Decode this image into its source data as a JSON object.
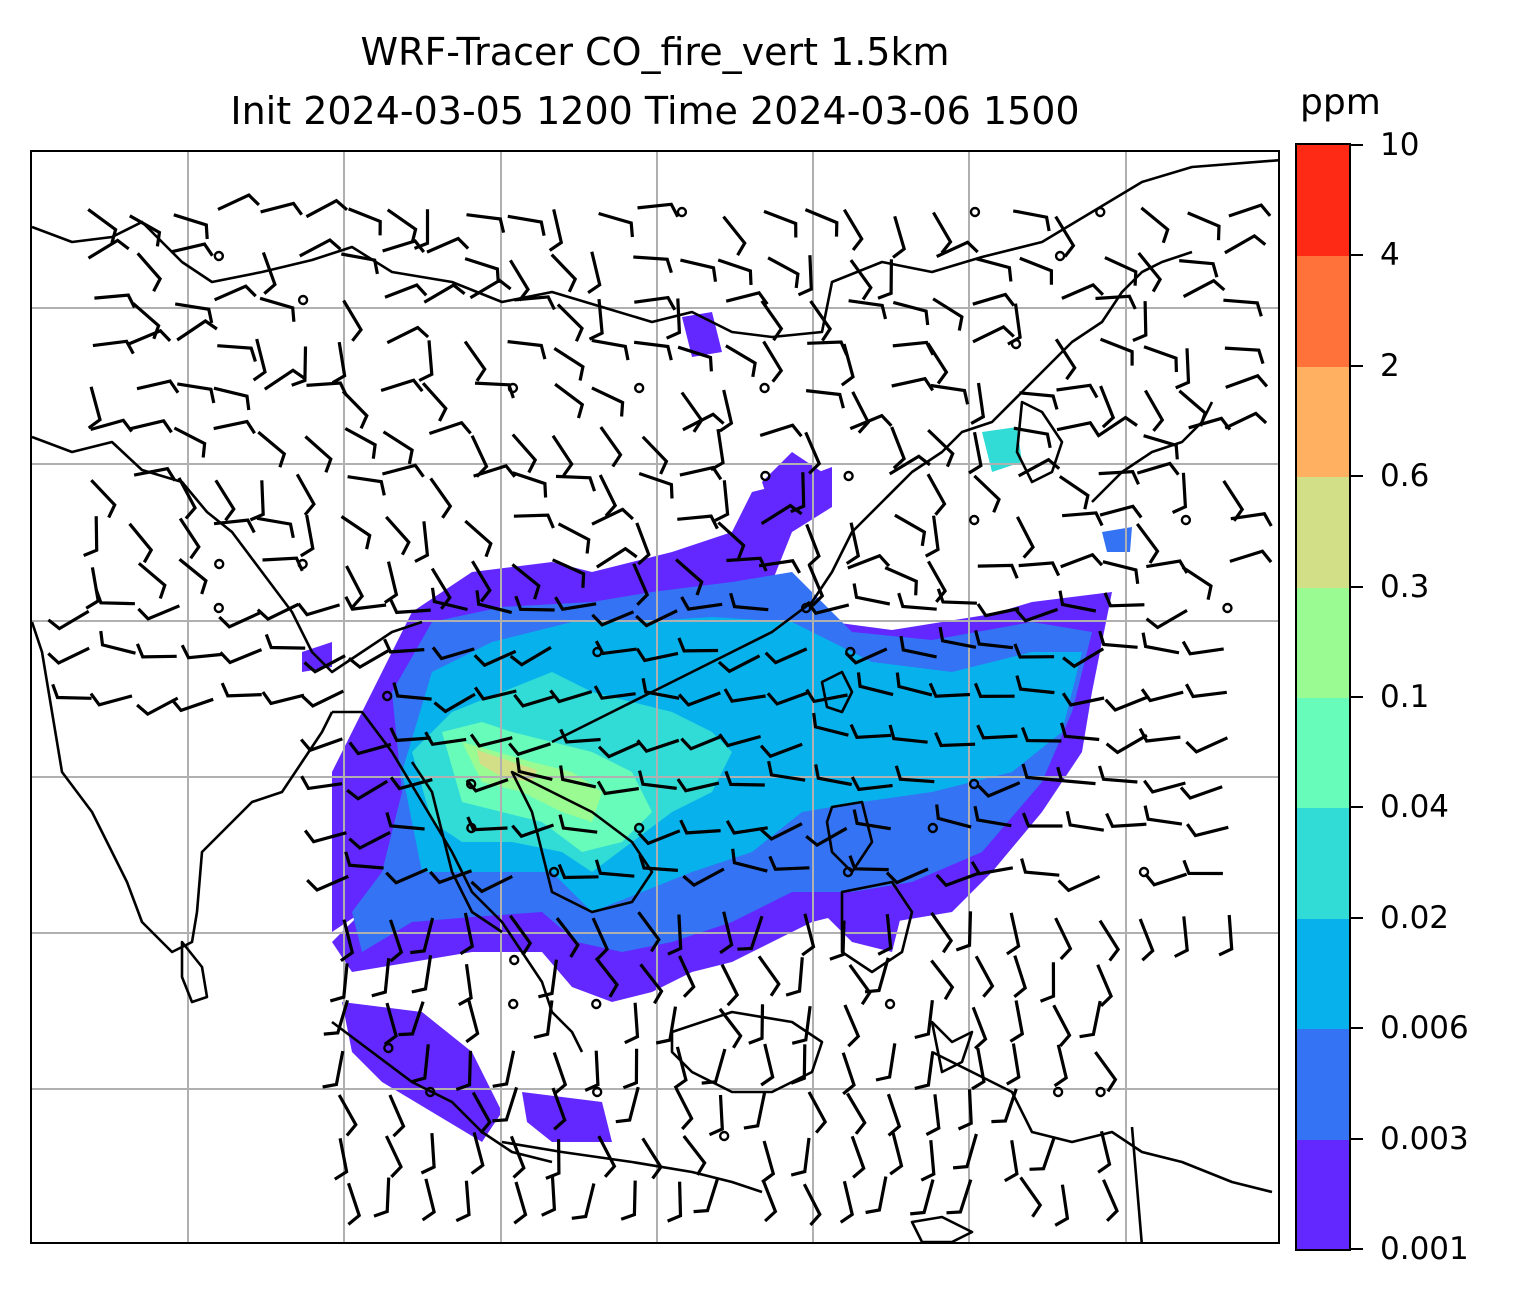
{
  "title": {
    "line1": "WRF-Tracer CO_fire_vert 1.5km",
    "line2": "Init 2024-03-05 1200 Time 2024-03-06 1500"
  },
  "colorbar": {
    "unit": "ppm",
    "levels": [
      "0.001",
      "0.003",
      "0.006",
      "0.02",
      "0.04",
      "0.1",
      "0.3",
      "0.6",
      "2",
      "4",
      "10"
    ],
    "colors": [
      "#6228ff",
      "#3373f4",
      "#07b2ec",
      "#31dcd6",
      "#67fcb9",
      "#9afb92",
      "#d2df86",
      "#ffb060",
      "#ff733b",
      "#ff2a15"
    ]
  },
  "map": {
    "gridlines": true,
    "coastline_color": "#000000",
    "grid_color": "#b0b0b0",
    "overlay": "wind-barbs"
  }
}
